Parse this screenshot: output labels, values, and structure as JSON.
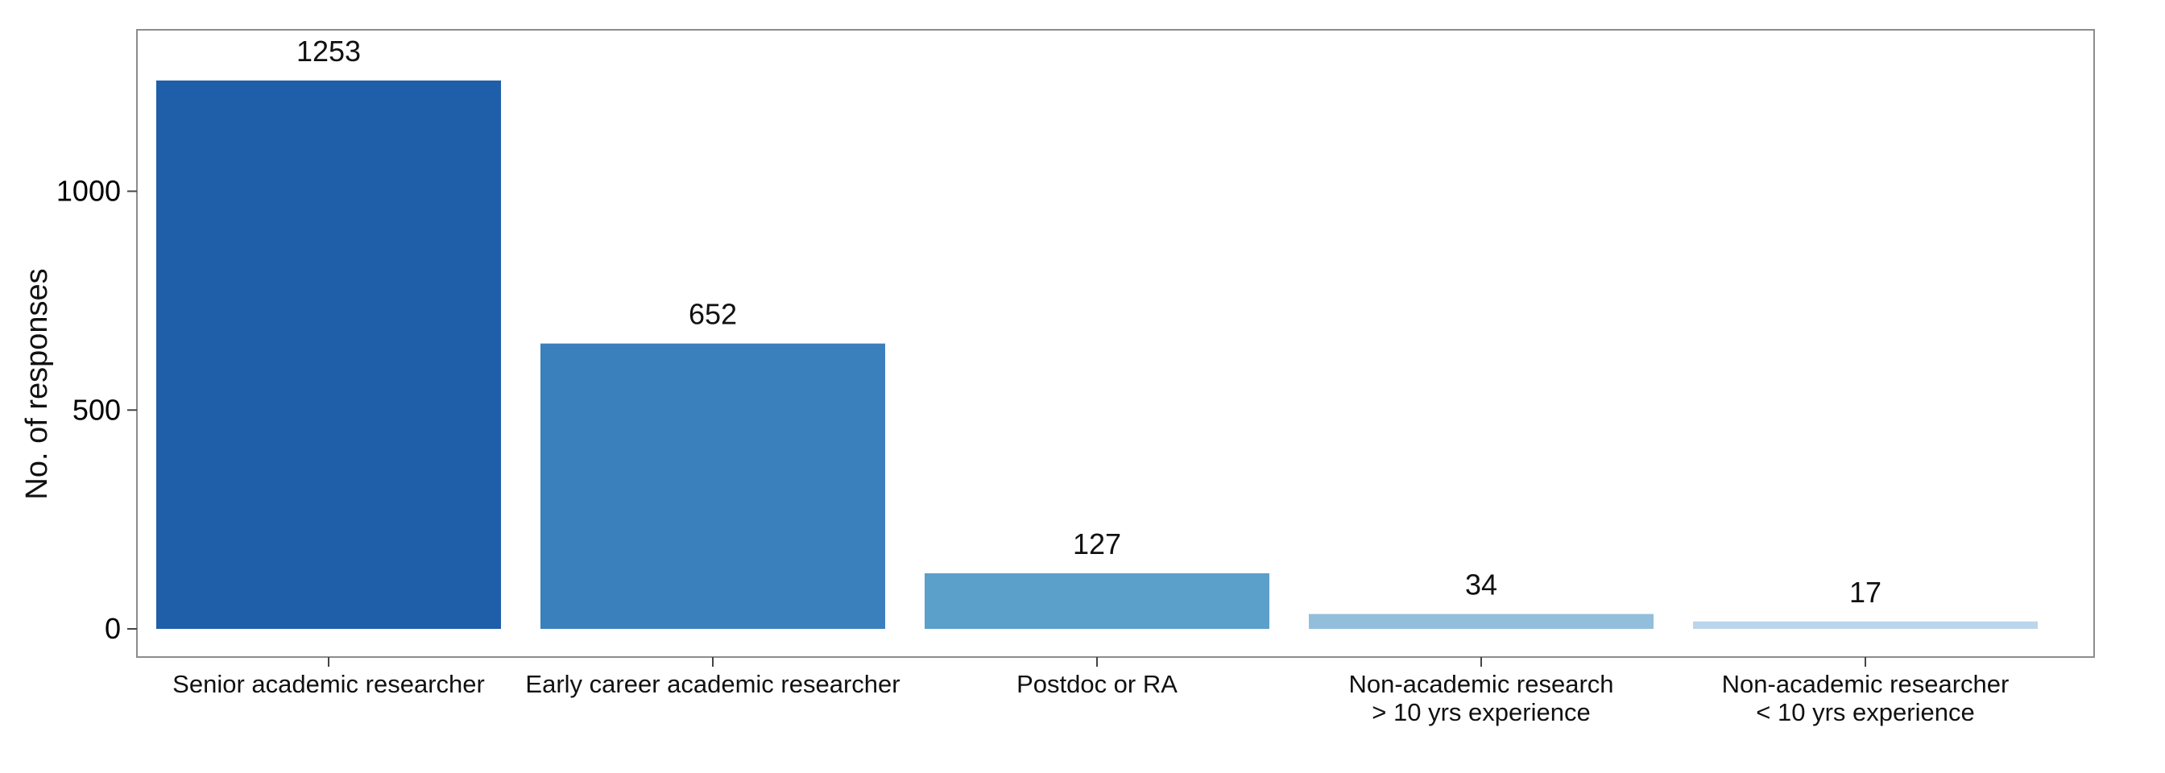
{
  "chart_data": {
    "type": "bar",
    "title": "",
    "xlabel": "",
    "ylabel": "No. of responses",
    "ylim": [
      -60,
      1375
    ],
    "yticks": [
      "0",
      "500",
      "1000"
    ],
    "categories": [
      [
        "Senior academic researcher"
      ],
      [
        "Early career academic researcher"
      ],
      [
        "Postdoc or RA"
      ],
      [
        "Non-academic research",
        "> 10 yrs experience"
      ],
      [
        "Non-academic researcher",
        "< 10 yrs experience"
      ]
    ],
    "values": [
      1253,
      652,
      127,
      34,
      17
    ],
    "data_labels": [
      "1253",
      "652",
      "127",
      "34",
      "17"
    ],
    "colors": [
      "#1f5ea8",
      "#3a80bd",
      "#5b9fcb",
      "#93bedb",
      "#bad5ec"
    ],
    "grid": false,
    "legend": "none"
  }
}
